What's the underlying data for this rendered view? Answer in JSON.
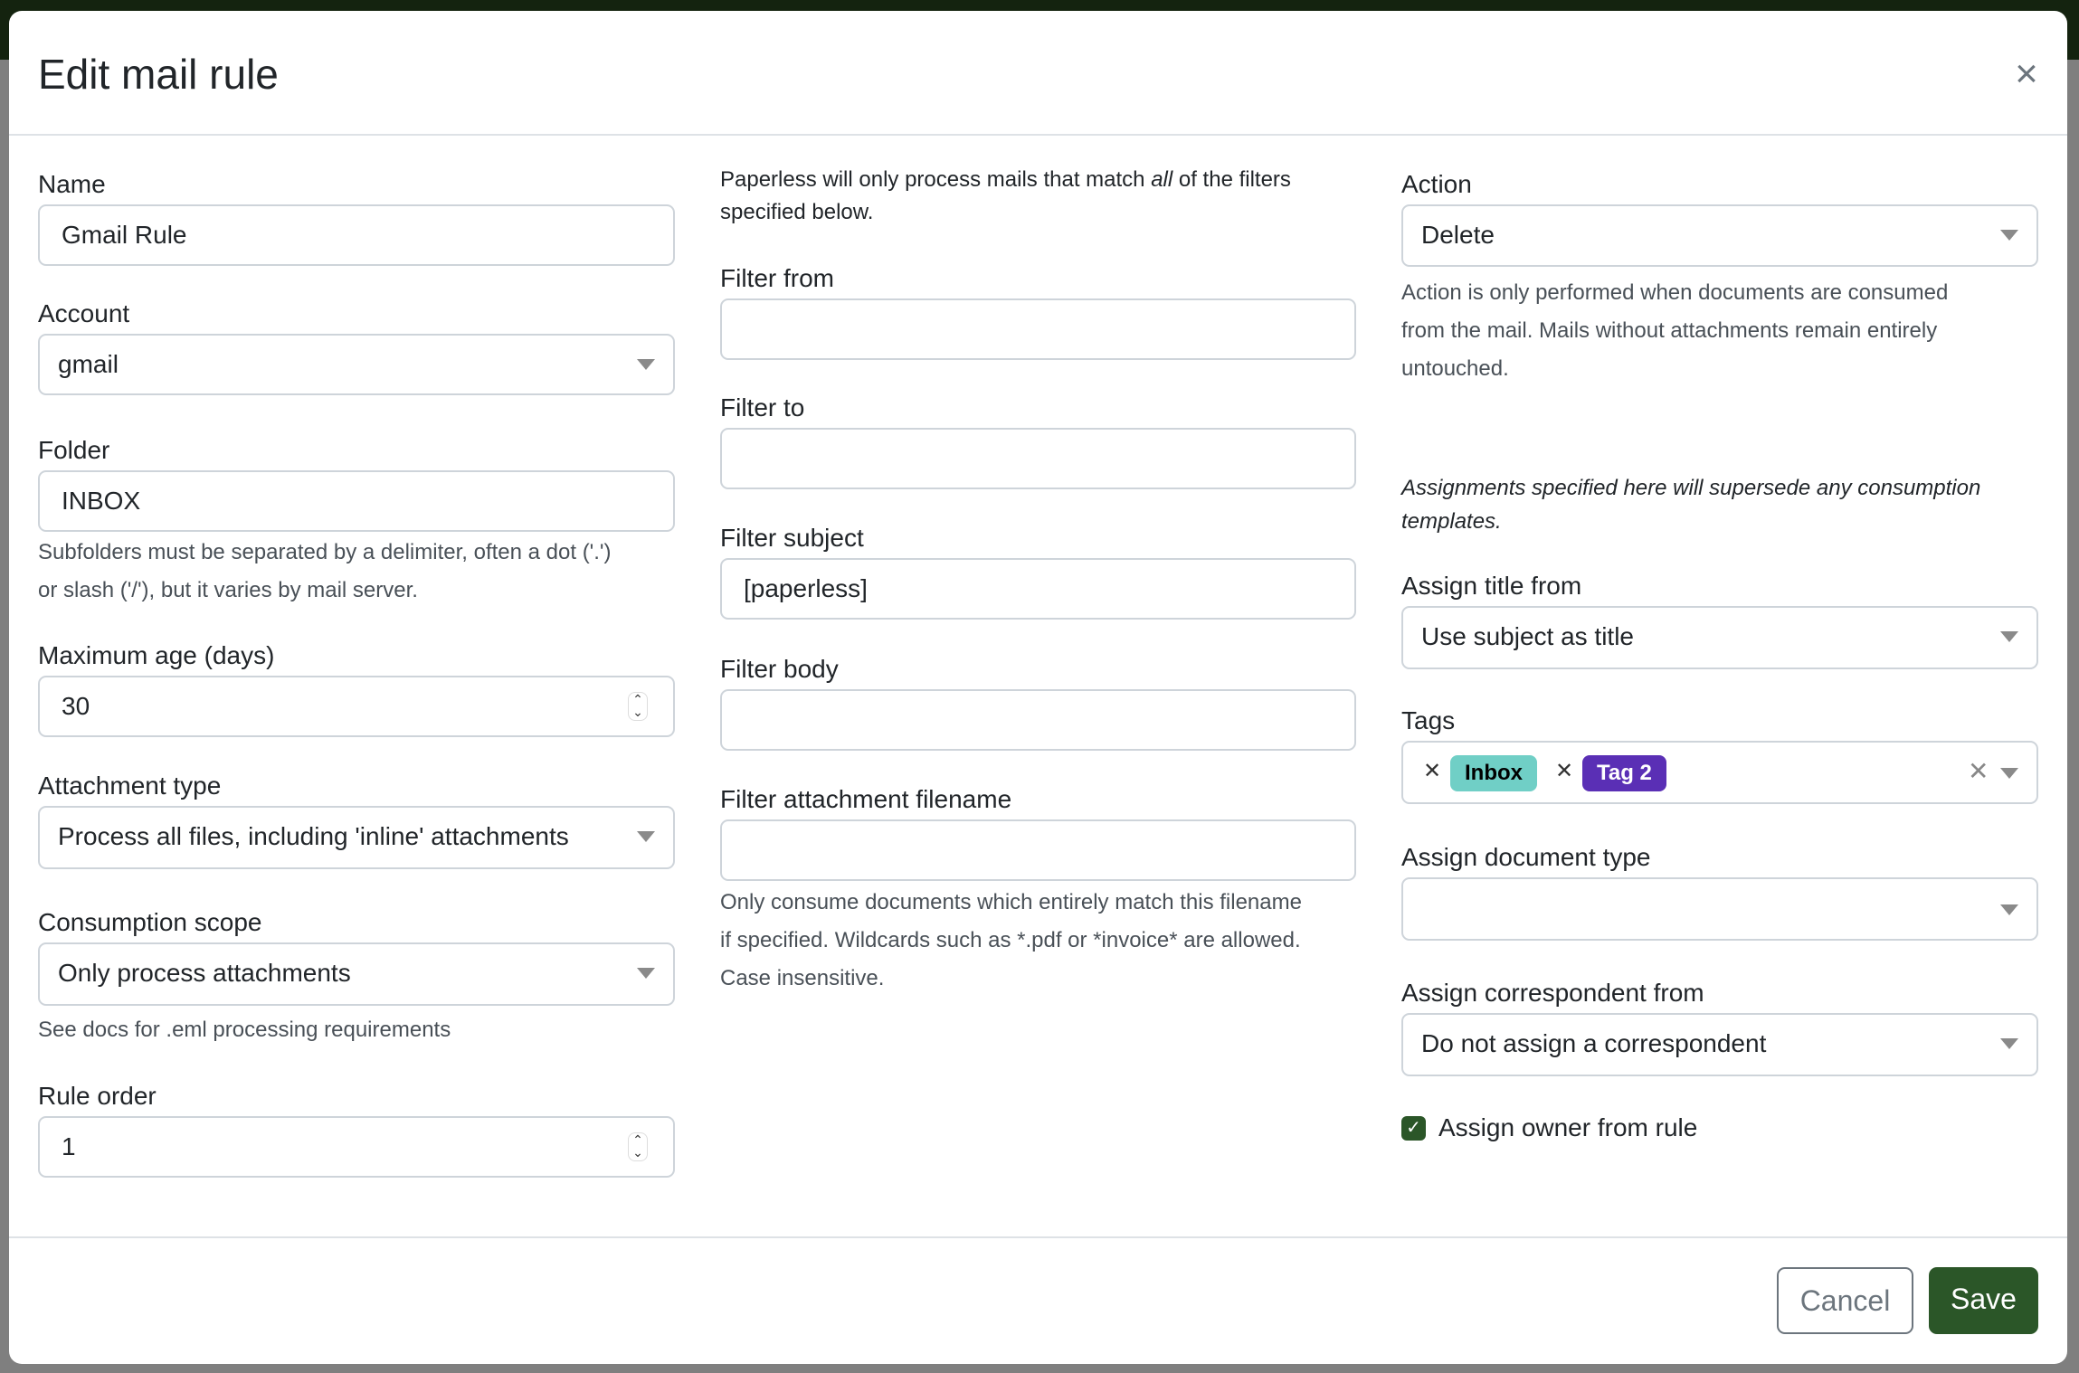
{
  "dialog": {
    "title": "Edit mail rule"
  },
  "left": {
    "name": {
      "label": "Name",
      "value": "Gmail Rule"
    },
    "account": {
      "label": "Account",
      "value": "gmail"
    },
    "folder": {
      "label": "Folder",
      "value": "INBOX",
      "help1": "Subfolders must be separated by a delimiter, often a dot ('.')",
      "help2": "or slash ('/'), but it varies by mail server."
    },
    "max_age": {
      "label": "Maximum age (days)",
      "value": "30"
    },
    "attachment_type": {
      "label": "Attachment type",
      "value": "Process all files, including 'inline' attachments"
    },
    "consumption_scope": {
      "label": "Consumption scope",
      "value": "Only process attachments",
      "help": "See docs for .eml processing requirements"
    },
    "rule_order": {
      "label": "Rule order",
      "value": "1"
    }
  },
  "middle": {
    "intro_pre": "Paperless will only process mails that match ",
    "intro_em": "all",
    "intro_post": " of the filters",
    "intro2": "specified below.",
    "filter_from": {
      "label": "Filter from",
      "value": ""
    },
    "filter_to": {
      "label": "Filter to",
      "value": ""
    },
    "filter_subject": {
      "label": "Filter subject",
      "value": "[paperless]"
    },
    "filter_body": {
      "label": "Filter body",
      "value": ""
    },
    "filter_attachment": {
      "label": "Filter attachment filename",
      "value": "",
      "help1": "Only consume documents which entirely match this filename",
      "help2": "if specified. Wildcards such as *.pdf or *invoice* are allowed.",
      "help3": "Case insensitive."
    }
  },
  "right": {
    "action": {
      "label": "Action",
      "value": "Delete",
      "help1": "Action is only performed when documents are consumed",
      "help2": "from the mail. Mails without attachments remain entirely",
      "help3": "untouched."
    },
    "note1": "Assignments specified here will supersede any consumption",
    "note2": "templates.",
    "assign_title": {
      "label": "Assign title from",
      "value": "Use subject as title"
    },
    "tags": {
      "label": "Tags",
      "items": [
        {
          "label": "Inbox",
          "color": "#70cfc6",
          "text_color": "#000000"
        },
        {
          "label": "Tag 2",
          "color": "#5a2fb5",
          "text_color": "#ffffff"
        }
      ]
    },
    "doc_type": {
      "label": "Assign document type",
      "value": ""
    },
    "correspondent": {
      "label": "Assign correspondent from",
      "value": "Do not assign a correspondent"
    },
    "owner": {
      "label": "Assign owner from rule",
      "checked": true
    }
  },
  "footer": {
    "cancel": "Cancel",
    "save": "Save"
  },
  "colors": {
    "primary": "#2b5628"
  }
}
